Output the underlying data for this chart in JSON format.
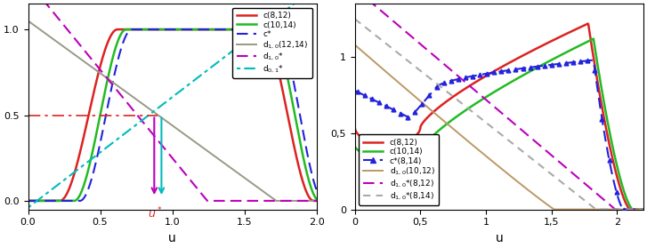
{
  "left": {
    "xlim": [
      0,
      2
    ],
    "ylim": [
      0,
      1.15
    ],
    "xticks": [
      0,
      0.5,
      1,
      1.5,
      2
    ],
    "yticks": [
      0,
      0.5,
      1
    ],
    "ustar": 0.9,
    "c812": {
      "color": "#dd2222",
      "lw": 1.8
    },
    "c1014": {
      "color": "#22bb22",
      "lw": 1.8
    },
    "cstar": {
      "color": "#2222dd",
      "lw": 1.5,
      "ls": "dashed"
    },
    "d1214": {
      "color": "#999988",
      "lw": 1.4
    },
    "d10star": {
      "color": "#bb00bb",
      "lw": 1.5,
      "ls": "dashed"
    },
    "d01star": {
      "color": "#00bbbb",
      "lw": 1.5,
      "ls": "dotted"
    }
  },
  "right": {
    "xlim": [
      0,
      2.2
    ],
    "ylim": [
      0,
      1.35
    ],
    "xticks": [
      0,
      0.5,
      1,
      1.5,
      2
    ],
    "yticks": [
      0,
      0.5,
      1
    ],
    "c812": {
      "color": "#dd2222",
      "lw": 1.8
    },
    "c1014": {
      "color": "#22bb22",
      "lw": 1.8
    },
    "cstar": {
      "color": "#2222dd",
      "lw": 1.5,
      "ls": "dashed"
    },
    "d1012": {
      "color": "#bb9966",
      "lw": 1.4
    },
    "d10star812": {
      "color": "#bb00bb",
      "lw": 1.5,
      "ls": "dashed"
    },
    "d10star814": {
      "color": "#aaaaaa",
      "lw": 1.5,
      "ls": "dashed"
    }
  }
}
